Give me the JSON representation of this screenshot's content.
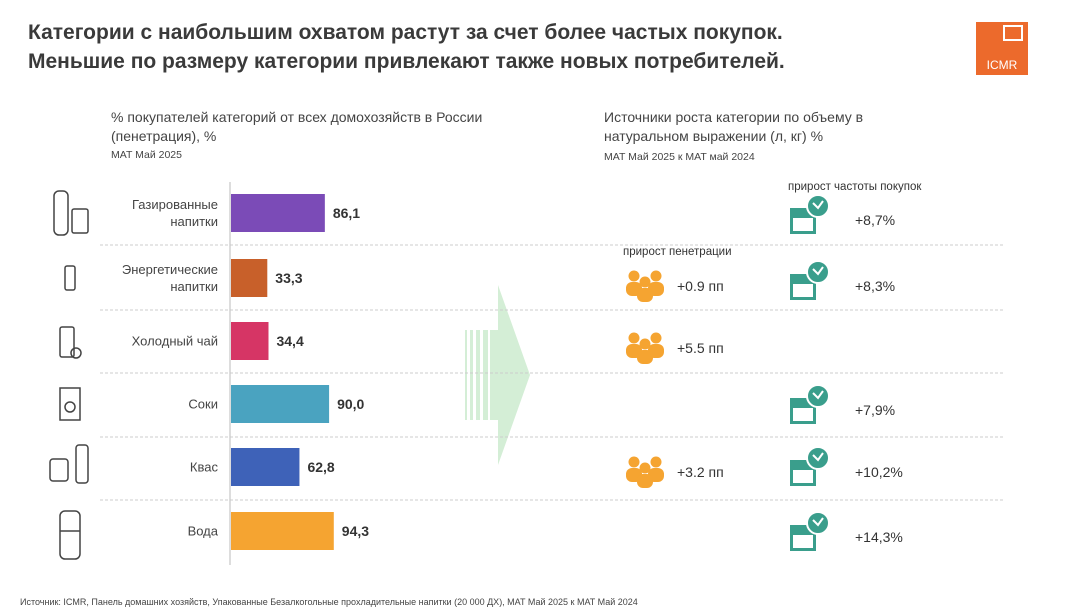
{
  "header": {
    "title_lines": [
      "Категории с наибольшим охватом растут за счет более частых покупок.",
      "Меньшие по размеру категории привлекают также новых потребителей."
    ],
    "logo": "ICMR"
  },
  "chart_data": {
    "type": "bar",
    "orientation": "horizontal",
    "title": "% покупателей категорий от всех домохозяйств в России (пенетрация), %",
    "subtitle": "MAT Май 2025",
    "categories": [
      "Газированные напитки",
      "Энергетические напитки",
      "Холодный чай",
      "Соки",
      "Квас",
      "Вода"
    ],
    "values": [
      86.1,
      33.3,
      34.4,
      90.0,
      62.8,
      94.3
    ],
    "value_labels": [
      "86,1",
      "33,3",
      "34,4",
      "90,0",
      "62,8",
      "94,3"
    ],
    "colors": [
      "#7b4bb7",
      "#c8602a",
      "#d63565",
      "#4aa3c0",
      "#3e62b8",
      "#f5a431"
    ]
  },
  "growth": {
    "title": "Источники роста категории по объему в натуральном выражении (л, кг) %",
    "subtitle": "MAT Май 2025 к MAT май 2024",
    "columns": [
      "прирост пенетрации",
      "прирост частоты покупок"
    ],
    "rows": [
      [
        null,
        "+8,7%"
      ],
      [
        "+0.9 пп",
        "+8,3%"
      ],
      [
        "+5.5 пп",
        null
      ],
      [
        null,
        "+7,9%"
      ],
      [
        "+3.2 пп",
        "+10,2%"
      ],
      [
        null,
        "+14,3%"
      ]
    ]
  },
  "footer": "Источник: ICMR, Панель домашних хозяйств, Упакованные Безалкогольные прохладительные напитки (20 000 ДХ), MAT Май 2025 к MAT Май 2024"
}
